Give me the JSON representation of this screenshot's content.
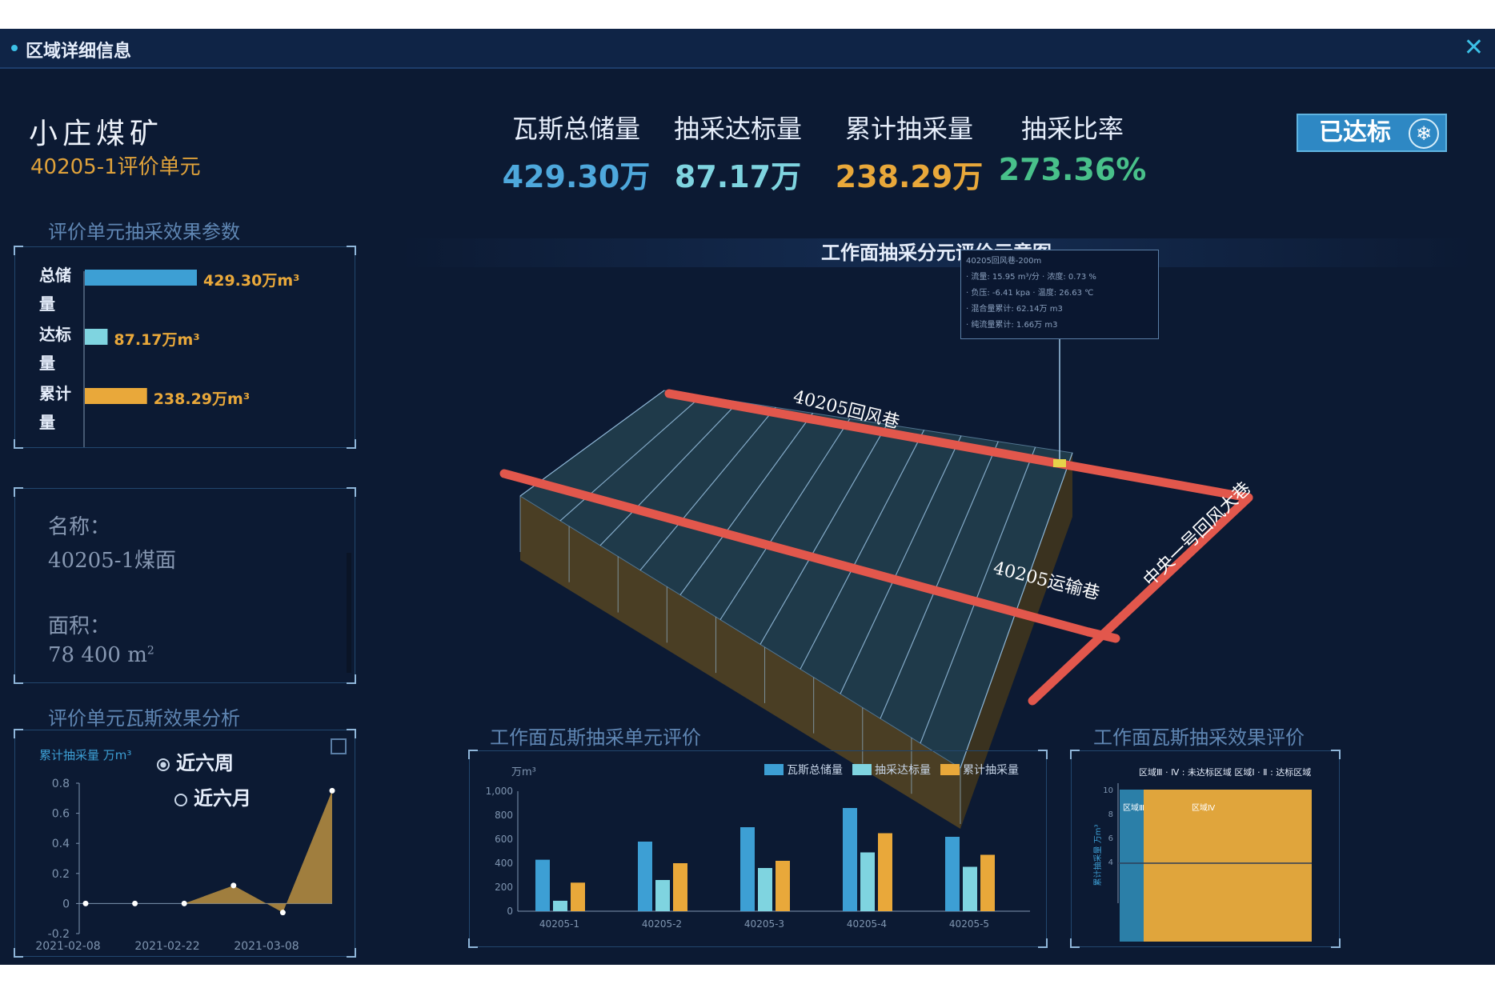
{
  "window": {
    "title": "区域详细信息",
    "close_glyph": "✕"
  },
  "header": {
    "mine_name": "小庄煤矿",
    "unit_name": "40205-1评价单元",
    "status_badge": "已达标"
  },
  "kpis": [
    {
      "label": "瓦斯总储量",
      "value": "429.30万",
      "color": "#4ea8dc"
    },
    {
      "label": "抽采达标量",
      "value": "87.17万",
      "color": "#7fd4e0"
    },
    {
      "label": "累计抽采量",
      "value": "238.29万",
      "color": "#e9a83a"
    },
    {
      "label": "抽采比率",
      "value": "273.36%",
      "color": "#48c08a"
    }
  ],
  "params_panel": {
    "title": "评价单元抽采效果参数",
    "bars": [
      {
        "label_lines": [
          "总储",
          "量"
        ],
        "value": 429.3,
        "value_text": "429.30万m³",
        "color": "#3d9fd4"
      },
      {
        "label_lines": [
          "达标",
          "量"
        ],
        "value": 87.17,
        "value_text": "87.17万m³",
        "color": "#7fd4e0"
      },
      {
        "label_lines": [
          "累计",
          "量"
        ],
        "value": 238.29,
        "value_text": "238.29万m³",
        "color": "#e9a83a"
      }
    ]
  },
  "info_panel": {
    "name_label": "名称：",
    "name_value": "40205-1煤面",
    "area_label": "面积：",
    "area_value": "78 400 m",
    "area_sup": "2"
  },
  "analysis_panel": {
    "title": "评价单元瓦斯效果分析",
    "legend": "累计抽采量 万m³",
    "options": [
      "近六周",
      "近六月"
    ],
    "selected": "近六周",
    "chart_data": {
      "type": "area",
      "yticks": [
        "0.8",
        "0.6",
        "0.4",
        "0.2",
        "0",
        "-0.2"
      ],
      "ylim": [
        -0.2,
        0.8
      ],
      "xticks": [
        "2021-02-08",
        "2021-02-22",
        "2021-03-08"
      ],
      "points": [
        0,
        0,
        0,
        0.12,
        -0.06,
        0.75
      ]
    }
  },
  "map": {
    "title": "工作面抽采分元评价示意图",
    "labels": {
      "return_airway": "40205回风巷",
      "haulage_way": "40205运输巷",
      "main_return": "中央一号回风大巷"
    },
    "tooltip_lines": [
      "40205回风巷-200m",
      "· 流量: 15.95 m³/分   · 浓度: 0.73 %",
      "· 负压: -6.41 kpa     · 温度: 26.63 ℃",
      "· 混合量累计: 62.14万 m3",
      "· 纯流量累计: 1.66万 m3"
    ]
  },
  "unit_eval": {
    "title": "工作面瓦斯抽采单元评价",
    "chart_data": {
      "type": "bar",
      "ylabel": "万m³",
      "ylim": [
        0,
        1000
      ],
      "yticks": [
        "1,000",
        "800",
        "600",
        "400",
        "200",
        "0"
      ],
      "categories": [
        "40205-1",
        "40205-2",
        "40205-3",
        "40205-4",
        "40205-5"
      ],
      "series": [
        {
          "name": "瓦斯总储量",
          "color": "#3d9fd4",
          "values": [
            429,
            580,
            700,
            860,
            620
          ]
        },
        {
          "name": "抽采达标量",
          "color": "#7fd4e0",
          "values": [
            87,
            260,
            360,
            490,
            370
          ]
        },
        {
          "name": "累计抽采量",
          "color": "#e9a83a",
          "values": [
            238,
            400,
            420,
            650,
            470
          ]
        }
      ]
    }
  },
  "effect_eval": {
    "title": "工作面瓦斯抽采效果评价",
    "chart_data": {
      "type": "bar",
      "legend": "区域Ⅲ · Ⅳ : 未达标区域  区域Ⅰ · Ⅱ : 达标区域",
      "ylabel": "累计抽采量 万m³",
      "yticks": [
        "10",
        "8",
        "6",
        "4"
      ],
      "regions": [
        {
          "name": "区域Ⅲ",
          "color": "#2b7fa8"
        },
        {
          "name": "区域Ⅳ",
          "color": "#e0a53c"
        }
      ]
    }
  }
}
